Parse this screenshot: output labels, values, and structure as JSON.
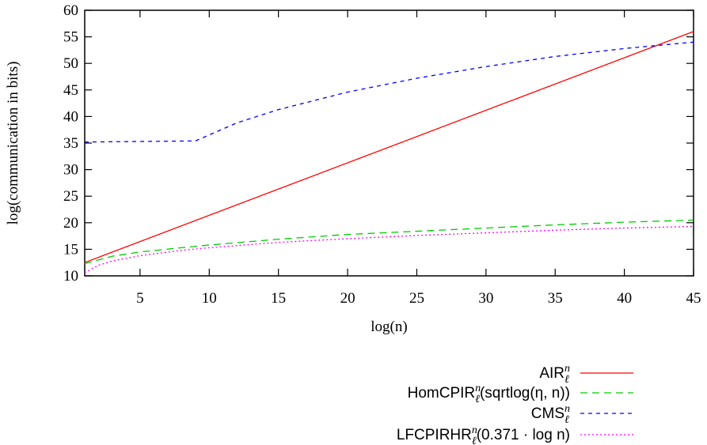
{
  "chart_data": {
    "type": "line",
    "xlabel": "log(n)",
    "ylabel": "log(communication in bits)",
    "xlim": [
      1,
      45
    ],
    "ylim": [
      10,
      60
    ],
    "xticks": [
      5,
      10,
      15,
      20,
      25,
      30,
      35,
      40,
      45
    ],
    "yticks": [
      10,
      15,
      20,
      25,
      30,
      35,
      40,
      45,
      50,
      55,
      60
    ],
    "grid": false,
    "legend_position": "bottom-right, below plot",
    "series": [
      {
        "name": "AIRℓⁿ",
        "legend_label": {
          "base": "AIR",
          "sub": "ℓ",
          "sup": "n",
          "suffix": ""
        },
        "color": "#ff0000",
        "dash": "solid",
        "x": [
          1,
          45
        ],
        "y": [
          12.5,
          56.0
        ]
      },
      {
        "name": "HomCPIRℓⁿ(sqrtlog(η, n))",
        "legend_label": {
          "base": "HomCPIR",
          "sub": "ℓ",
          "sup": "n",
          "suffix": "(sqrtlog(η, n))"
        },
        "color": "#00cc00",
        "dash": "long",
        "x": [
          1,
          3,
          5,
          8,
          10,
          15,
          20,
          25,
          30,
          35,
          40,
          45
        ],
        "y": [
          12.3,
          13.7,
          14.5,
          15.3,
          15.8,
          16.9,
          17.8,
          18.4,
          19.0,
          19.6,
          20.1,
          20.5
        ]
      },
      {
        "name": "CMSℓⁿ",
        "legend_label": {
          "base": "CMS",
          "sub": "ℓ",
          "sup": "n",
          "suffix": ""
        },
        "color": "#0000ff",
        "dash": "short",
        "x": [
          1,
          5,
          9,
          12,
          15,
          20,
          25,
          30,
          35,
          40,
          45
        ],
        "y": [
          35.2,
          35.3,
          35.4,
          38.8,
          41.3,
          44.6,
          47.2,
          49.4,
          51.3,
          52.8,
          54.0
        ]
      },
      {
        "name": "LFCPIRHRℓⁿ(0.371 · log n)",
        "legend_label": {
          "base": "LFCPIRHR",
          "sub": "ℓ",
          "sup": "n",
          "suffix": "(0.371 · log n)"
        },
        "color": "#ff00ff",
        "dash": "dotted",
        "x": [
          1,
          2,
          3,
          5,
          8,
          10,
          15,
          20,
          25,
          30,
          35,
          40,
          45
        ],
        "y": [
          10.6,
          12.0,
          12.8,
          13.8,
          14.8,
          15.3,
          16.3,
          17.0,
          17.6,
          18.1,
          18.6,
          19.0,
          19.3
        ]
      }
    ]
  }
}
